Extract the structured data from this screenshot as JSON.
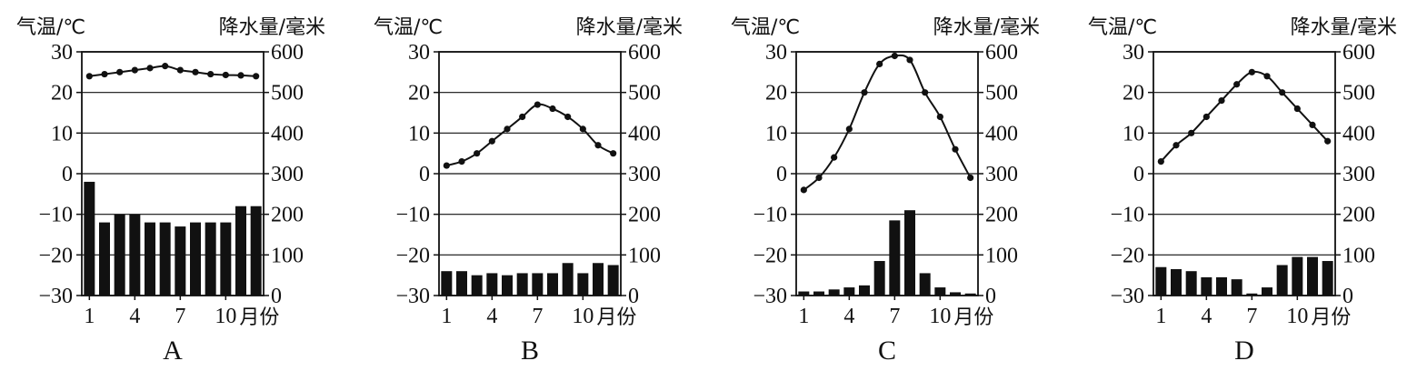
{
  "chart_data": [
    {
      "type": "bar",
      "caption": "A",
      "left_axis_title": "气温/℃",
      "right_axis_title": "降水量/毫米",
      "x_axis_title": "月份",
      "x_ticks": [
        "1",
        "4",
        "7",
        "10"
      ],
      "months": [
        1,
        2,
        3,
        4,
        5,
        6,
        7,
        8,
        9,
        10,
        11,
        12
      ],
      "temp_ticks": [
        "30",
        "20",
        "10",
        "0",
        "−10",
        "−20",
        "−30"
      ],
      "precip_ticks": [
        "600",
        "500",
        "400",
        "300",
        "200",
        "100",
        "0"
      ],
      "temp_range": [
        -30,
        30
      ],
      "precip_range": [
        0,
        600
      ],
      "grid": "horizontal",
      "temperature": [
        24,
        24.5,
        25,
        25.5,
        26,
        26.5,
        25.5,
        25,
        24.5,
        24.3,
        24.2,
        24
      ],
      "precipitation": [
        280,
        180,
        200,
        200,
        180,
        180,
        170,
        180,
        180,
        180,
        220,
        220
      ]
    },
    {
      "type": "bar",
      "caption": "B",
      "left_axis_title": "气温/℃",
      "right_axis_title": "降水量/毫米",
      "x_axis_title": "月份",
      "x_ticks": [
        "1",
        "4",
        "7",
        "10"
      ],
      "months": [
        1,
        2,
        3,
        4,
        5,
        6,
        7,
        8,
        9,
        10,
        11,
        12
      ],
      "temp_ticks": [
        "30",
        "20",
        "10",
        "0",
        "−10",
        "−20",
        "−30"
      ],
      "precip_ticks": [
        "600",
        "500",
        "400",
        "300",
        "200",
        "100",
        "0"
      ],
      "temp_range": [
        -30,
        30
      ],
      "precip_range": [
        0,
        600
      ],
      "grid": "horizontal",
      "temperature": [
        2,
        3,
        5,
        8,
        11,
        14,
        17,
        16,
        14,
        11,
        7,
        5
      ],
      "precipitation": [
        60,
        60,
        50,
        55,
        50,
        55,
        55,
        55,
        80,
        55,
        80,
        75
      ]
    },
    {
      "type": "bar",
      "caption": "C",
      "left_axis_title": "气温/℃",
      "right_axis_title": "降水量/毫米",
      "x_axis_title": "月份",
      "x_ticks": [
        "1",
        "4",
        "7",
        "10"
      ],
      "months": [
        1,
        2,
        3,
        4,
        5,
        6,
        7,
        8,
        9,
        10,
        11,
        12
      ],
      "temp_ticks": [
        "30",
        "20",
        "10",
        "0",
        "−10",
        "−20",
        "−30"
      ],
      "precip_ticks": [
        "600",
        "500",
        "400",
        "300",
        "200",
        "100",
        "0"
      ],
      "temp_range": [
        -30,
        30
      ],
      "precip_range": [
        0,
        600
      ],
      "grid": "horizontal",
      "temperature": [
        -4,
        -1,
        4,
        11,
        20,
        27,
        29,
        28,
        20,
        14,
        6,
        -1
      ],
      "precipitation": [
        10,
        10,
        15,
        20,
        25,
        85,
        185,
        210,
        55,
        20,
        8,
        5
      ]
    },
    {
      "type": "bar",
      "caption": "D",
      "left_axis_title": "气温/℃",
      "right_axis_title": "降水量/毫米",
      "x_axis_title": "月份",
      "x_ticks": [
        "1",
        "4",
        "7",
        "10"
      ],
      "months": [
        1,
        2,
        3,
        4,
        5,
        6,
        7,
        8,
        9,
        10,
        11,
        12
      ],
      "temp_ticks": [
        "30",
        "20",
        "10",
        "0",
        "−10",
        "−20",
        "−30"
      ],
      "precip_ticks": [
        "600",
        "500",
        "400",
        "300",
        "200",
        "100",
        "0"
      ],
      "temp_range": [
        -30,
        30
      ],
      "precip_range": [
        0,
        600
      ],
      "grid": "horizontal",
      "temperature": [
        3,
        7,
        10,
        14,
        18,
        22,
        25,
        24,
        20,
        16,
        12,
        8
      ],
      "precipitation": [
        70,
        65,
        60,
        45,
        45,
        40,
        5,
        20,
        75,
        95,
        95,
        85
      ]
    }
  ]
}
